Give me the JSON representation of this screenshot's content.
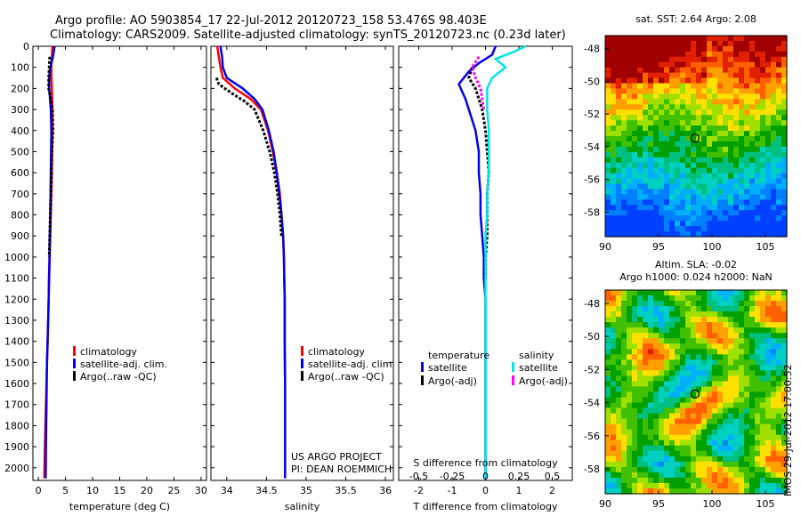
{
  "title_line1": "Argo profile: AO 5903854_17 22-Jul-2012 20120723_158 53.476S 98.403E",
  "title_line2": "Climatology: CARS2009. Satellite-adjusted climatology: synTS_20120723.nc (0.23d later)",
  "project_line1": "US ARGO PROJECT",
  "project_line2": "PI: DEAN ROEMMICH",
  "chart_data": [
    {
      "type": "line",
      "id": "temperature",
      "xlabel": "temperature (deg C)",
      "xlim": [
        -1,
        31
      ],
      "xticks": [
        0,
        5,
        10,
        15,
        20,
        25,
        30
      ],
      "ylim": [
        0,
        2060
      ],
      "yticks": [
        0,
        100,
        200,
        300,
        400,
        500,
        600,
        700,
        800,
        900,
        1000,
        1100,
        1200,
        1300,
        1400,
        1500,
        1600,
        1700,
        1800,
        1900,
        2000
      ],
      "legend": [
        "climatology",
        "satellite-adj. clim.",
        "Argo(..raw -QC)"
      ],
      "series": [
        {
          "key": "climatology",
          "color": "#ff0000",
          "style": "solid",
          "x": [
            2.6,
            2.5,
            2.4,
            2.4,
            2.5,
            2.6,
            2.6,
            2.55,
            2.5,
            2.4,
            2.3,
            2.2,
            2.1,
            2.0,
            1.9,
            1.8,
            1.7,
            1.6,
            1.5,
            1.4,
            1.3,
            1.2,
            1.1
          ],
          "y": [
            0,
            50,
            100,
            150,
            200,
            300,
            400,
            500,
            600,
            700,
            800,
            900,
            1000,
            1100,
            1200,
            1300,
            1400,
            1500,
            1600,
            1700,
            1800,
            1900,
            2050
          ]
        },
        {
          "key": "satellite-adj. clim.",
          "color": "#0000ee",
          "style": "solid",
          "x": [
            3.0,
            2.7,
            2.2,
            2.0,
            2.0,
            2.3,
            2.4,
            2.35,
            2.3,
            2.25,
            2.2,
            2.1,
            2.05,
            1.95,
            1.9,
            1.8,
            1.7,
            1.6,
            1.55,
            1.5,
            1.45,
            1.4,
            1.35
          ],
          "y": [
            0,
            50,
            100,
            150,
            200,
            300,
            400,
            500,
            600,
            700,
            800,
            900,
            1000,
            1100,
            1200,
            1300,
            1400,
            1500,
            1600,
            1700,
            1800,
            1900,
            2050
          ]
        },
        {
          "key": "Argo(..raw -QC)",
          "color": "#000000",
          "style": "dashed",
          "x": [
            2.1,
            2.0,
            1.9,
            1.9,
            2.3,
            2.6,
            2.7,
            2.5,
            2.4,
            2.3,
            2.2,
            2.1,
            2.0
          ],
          "y": [
            50,
            100,
            150,
            200,
            250,
            300,
            400,
            500,
            600,
            700,
            800,
            900,
            1000
          ]
        }
      ]
    },
    {
      "type": "line",
      "id": "salinity",
      "xlabel": "salinity",
      "xlim": [
        33.8,
        36.1
      ],
      "xticks": [
        34,
        34.5,
        35,
        35.5,
        36
      ],
      "ylim": [
        0,
        2060
      ],
      "legend": [
        "climatology",
        "satellite-adj. clim.",
        "Argo(..raw -QC)"
      ],
      "series": [
        {
          "key": "climatology",
          "color": "#ff0000",
          "style": "solid",
          "x": [
            33.88,
            33.9,
            33.92,
            33.95,
            34.1,
            34.3,
            34.43,
            34.52,
            34.58,
            34.63,
            34.67,
            34.69,
            34.71,
            34.72,
            34.725,
            34.73,
            34.73,
            34.735,
            34.735,
            34.735,
            34.735
          ],
          "y": [
            0,
            50,
            100,
            150,
            200,
            250,
            300,
            400,
            500,
            600,
            700,
            800,
            900,
            1000,
            1100,
            1200,
            1400,
            1600,
            1800,
            1900,
            2050
          ]
        },
        {
          "key": "satellite-adj. clim.",
          "color": "#0000ee",
          "style": "solid",
          "x": [
            33.92,
            33.94,
            33.95,
            34.0,
            34.2,
            34.35,
            34.45,
            34.53,
            34.59,
            34.63,
            34.66,
            34.69,
            34.71,
            34.72,
            34.725,
            34.73,
            34.73,
            34.735,
            34.735,
            34.735,
            34.735
          ],
          "y": [
            0,
            50,
            100,
            150,
            200,
            250,
            300,
            400,
            500,
            600,
            700,
            800,
            900,
            1000,
            1100,
            1200,
            1400,
            1600,
            1800,
            1900,
            2050
          ]
        },
        {
          "key": "Argo(..raw -QC)",
          "color": "#000000",
          "style": "dashed",
          "x": [
            33.87,
            33.9,
            34.05,
            34.22,
            34.35,
            34.46,
            34.54,
            34.6,
            34.64,
            34.67,
            34.69
          ],
          "y": [
            150,
            180,
            220,
            260,
            300,
            400,
            500,
            600,
            700,
            800,
            900
          ]
        }
      ]
    },
    {
      "type": "line",
      "id": "difference",
      "xlabel": "T difference from climatology",
      "xlabel_top": "S difference from climatology",
      "xlim": [
        -2.6,
        2.6
      ],
      "xticks": [
        -2,
        -1,
        0,
        1,
        2
      ],
      "xticks_top": [
        "-0.5",
        "-0.25",
        "0",
        "0.25",
        "0.5"
      ],
      "ylim": [
        0,
        2060
      ],
      "legend_left_title": "temperature",
      "legend_right_title": "salinity",
      "legend": [
        "satellite",
        "Argo(-adj)",
        "satellite",
        "Argo(-adj)"
      ],
      "series": [
        {
          "key": "temperature satellite",
          "color": "#0000ee",
          "style": "solid",
          "x": [
            0.3,
            0.2,
            -0.2,
            -0.5,
            -0.8,
            -0.6,
            -0.3,
            -0.2,
            -0.2,
            -0.15,
            -0.15,
            -0.1,
            -0.05,
            -0.05,
            0,
            0,
            0,
            0,
            0,
            0,
            0,
            0
          ],
          "y": [
            0,
            40,
            80,
            120,
            180,
            250,
            400,
            500,
            600,
            700,
            800,
            900,
            1000,
            1100,
            1200,
            1300,
            1400,
            1500,
            1600,
            1700,
            1800,
            2050
          ]
        },
        {
          "key": "temperature Argo(-adj)",
          "color": "#000000",
          "style": "dashed",
          "x": [
            -0.4,
            -0.5,
            -0.3,
            -0.1,
            0,
            0.05,
            0.1,
            0.05,
            0.05,
            0.05,
            0,
            0
          ],
          "y": [
            100,
            150,
            200,
            300,
            400,
            500,
            600,
            700,
            800,
            900,
            1000,
            1100
          ]
        },
        {
          "key": "salinity satellite",
          "color": "#00e5e5",
          "style": "solid",
          "x": [
            1.2,
            0.8,
            0.3,
            0.6,
            0.2,
            0.05,
            0.05,
            0.1,
            0.1,
            0.1,
            0.05,
            0.05,
            0,
            0,
            0,
            0,
            0,
            0,
            0
          ],
          "y": [
            0,
            30,
            60,
            100,
            150,
            200,
            300,
            400,
            500,
            600,
            700,
            800,
            900,
            1000,
            1200,
            1400,
            1600,
            1800,
            2050
          ]
        },
        {
          "key": "salinity Argo(-adj)",
          "color": "#ff00ff",
          "style": "dashed",
          "x": [
            -0.2,
            -0.4,
            -0.3,
            -0.15,
            -0.1,
            -0.05
          ],
          "y": [
            50,
            100,
            150,
            200,
            250,
            300
          ]
        }
      ]
    },
    {
      "type": "heatmap",
      "id": "sst_map",
      "title": "sat. SST: 2.64 Argo: 2.08",
      "xlim": [
        90,
        107
      ],
      "ylim": [
        -59.5,
        -47.2
      ],
      "xticks": [
        90,
        95,
        100,
        105
      ],
      "yticks": [
        -48,
        -50,
        -52,
        -54,
        -56,
        -58
      ],
      "marker": {
        "lon": 98.403,
        "lat": -53.476
      },
      "colormap": [
        "#0040ff",
        "#0080ff",
        "#00b0ff",
        "#00d0c0",
        "#00c080",
        "#00a000",
        "#40c000",
        "#a0e000",
        "#ffe000",
        "#ffa000",
        "#ff6000",
        "#e02000",
        "#a00000"
      ]
    },
    {
      "type": "heatmap",
      "id": "sla_map",
      "title": "Altim. SLA: -0.02",
      "title_line2": "Argo h1000: 0.024 h2000: NaN",
      "xlim": [
        90,
        107
      ],
      "ylim": [
        -59.5,
        -47.2
      ],
      "xticks": [
        90,
        95,
        100,
        105
      ],
      "yticks": [
        -48,
        -50,
        -52,
        -54,
        -56,
        -58
      ],
      "marker": {
        "lon": 98.403,
        "lat": -53.476
      },
      "colormap": [
        "#0040ff",
        "#0080ff",
        "#00b0ff",
        "#00d0c0",
        "#00c080",
        "#00a000",
        "#40c000",
        "#a0e000",
        "#ffe000",
        "#ffa000",
        "#ff6000",
        "#e02000",
        "#a00000"
      ]
    }
  ],
  "imos_stamp": "IMOS 29-Jul-2012 17:00:52"
}
